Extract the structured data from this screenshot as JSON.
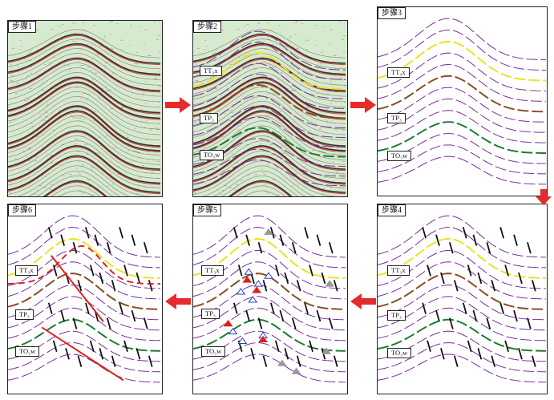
{
  "steps": [
    {
      "id": "1",
      "label": "步骤1",
      "type": "seismic"
    },
    {
      "id": "2",
      "label": "步骤2",
      "type": "interpreted"
    },
    {
      "id": "3",
      "label": "步骤3",
      "type": "horizons"
    },
    {
      "id": "4",
      "label": "步骤4",
      "type": "faults"
    },
    {
      "id": "5",
      "label": "步骤5",
      "type": "markers"
    },
    {
      "id": "6",
      "label": "步骤6",
      "type": "final"
    }
  ],
  "horizon_labels": {
    "tt": "TT₃x",
    "tp": "TP₃",
    "to": "TO₃w"
  },
  "colors": {
    "purple": "#7a2b9e",
    "yellow": "#f0e020",
    "brown": "#8b4a2b",
    "green": "#1e7a35",
    "red": "#e02020",
    "blue": "#2a3fbf",
    "fault": "#111111",
    "arrow": "#e52b2b",
    "seismic_bg": "#d6ead0"
  }
}
